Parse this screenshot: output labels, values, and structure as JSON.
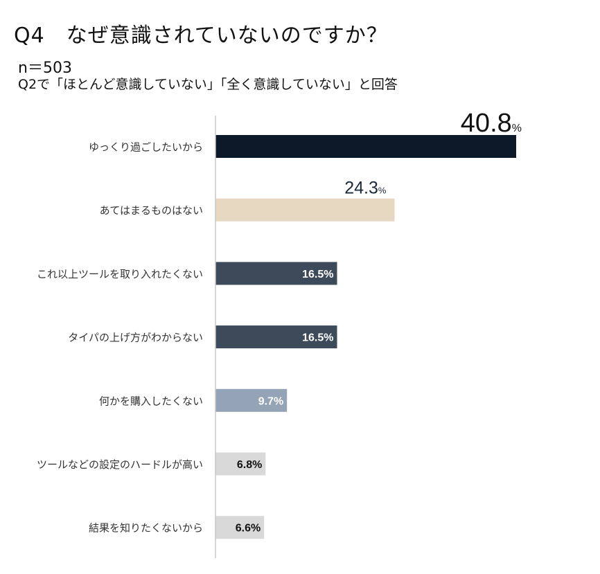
{
  "header": {
    "title": "Q4　なぜ意識されていないのですか？",
    "sample": "n＝503",
    "note": "Q2で「ほとんど意識していない」「全く意識していない」と回答"
  },
  "chart_data": {
    "type": "bar",
    "orientation": "horizontal",
    "title": "Q4　なぜ意識されていないのですか？",
    "unit": "%",
    "xlim": [
      0,
      40.8
    ],
    "categories": [
      "ゆっくり過ごしたいから",
      "あてはまるものはない",
      "これ以上ツールを取り入れたくない",
      "タイパの上げ方がわからない",
      "何かを購入したくない",
      "ツールなどの設定のハードルが高い",
      "結果を知りたくないから"
    ],
    "values": [
      40.8,
      24.3,
      16.5,
      16.5,
      9.7,
      6.8,
      6.6
    ],
    "value_labels": [
      "40.8",
      "24.3",
      "16.5%",
      "16.5%",
      "9.7%",
      "6.8%",
      "6.6%"
    ],
    "bar_colors": [
      "#0b1928",
      "#e6d8c1",
      "#3c4a5a",
      "#3c4a5a",
      "#94a3b5",
      "#d9d9d9",
      "#d9d9d9"
    ],
    "label_colors": [
      "#111111",
      "#1b2838",
      "#ffffff",
      "#ffffff",
      "#ffffff",
      "#111111",
      "#111111"
    ],
    "axis_color": "#c8c8c8"
  }
}
